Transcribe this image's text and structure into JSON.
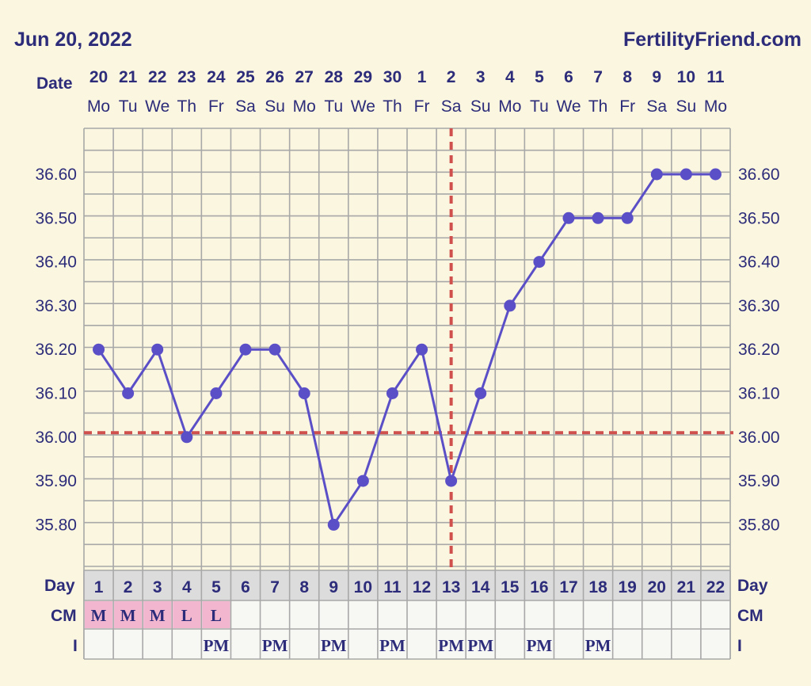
{
  "header": {
    "date": "Jun 20, 2022",
    "brand": "FertilityFriend.com"
  },
  "labels": {
    "date_row": "Date",
    "day_row": "Day",
    "cm_row": "CM",
    "i_row": "I"
  },
  "colors": {
    "background": "#fbf6df",
    "text": "#2c2c7a",
    "grid": "#a8a8a8",
    "line": "#5b4fc7",
    "coverline": "#d0504d",
    "day_row_bg": "#dcdcdc",
    "cm_highlight": "#f2b6cf"
  },
  "chart_data": {
    "type": "line",
    "title": "",
    "xlabel": "Date",
    "ylabel": "",
    "ylim": [
      35.7,
      36.9
    ],
    "y_ticks": [
      "36.60",
      "36.50",
      "36.40",
      "36.30",
      "36.20",
      "36.10",
      "36.00",
      "35.90",
      "35.80"
    ],
    "dates": [
      "20",
      "21",
      "22",
      "23",
      "24",
      "25",
      "26",
      "27",
      "28",
      "29",
      "30",
      "1",
      "2",
      "3",
      "4",
      "5",
      "6",
      "7",
      "8",
      "9",
      "10",
      "11"
    ],
    "weekdays": [
      "Mo",
      "Tu",
      "We",
      "Th",
      "Fr",
      "Sa",
      "Su",
      "Mo",
      "Tu",
      "We",
      "Th",
      "Fr",
      "Sa",
      "Su",
      "Mo",
      "Tu",
      "We",
      "Th",
      "Fr",
      "Sa",
      "Su",
      "Mo"
    ],
    "cycle_days": [
      "1",
      "2",
      "3",
      "4",
      "5",
      "6",
      "7",
      "8",
      "9",
      "10",
      "11",
      "12",
      "13",
      "14",
      "15",
      "16",
      "17",
      "18",
      "19",
      "20",
      "21",
      "22"
    ],
    "series": [
      {
        "values": [
          36.2,
          36.1,
          36.2,
          36.0,
          36.1,
          36.2,
          36.2,
          36.1,
          35.8,
          35.9,
          36.1,
          36.2,
          35.9,
          36.1,
          36.3,
          36.4,
          36.5,
          36.5,
          36.5,
          36.6,
          36.6,
          36.6
        ]
      }
    ],
    "coverline": 36.01,
    "ovulation_day_index": 12,
    "cm": [
      "M",
      "M",
      "M",
      "L",
      "L",
      "",
      "",
      "",
      "",
      "",
      "",
      "",
      "",
      "",
      "",
      "",
      "",
      "",
      "",
      "",
      "",
      ""
    ],
    "intercourse": [
      "",
      "",
      "",
      "",
      "PM",
      "",
      "PM",
      "",
      "PM",
      "",
      "PM",
      "",
      "PM",
      "PM",
      "",
      "PM",
      "",
      "PM",
      "",
      "",
      "",
      ""
    ],
    "grid": true
  }
}
